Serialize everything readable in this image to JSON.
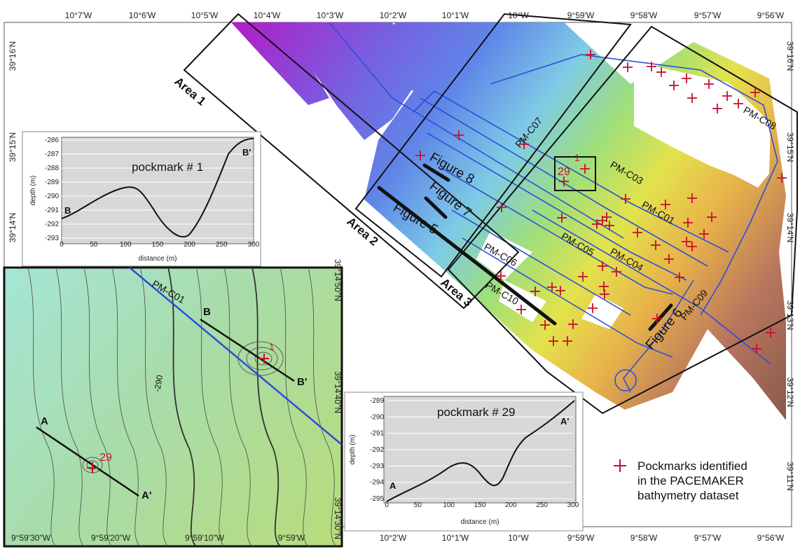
{
  "map": {
    "top_lon_ticks": [
      "10°7'W",
      "10°6'W",
      "10°5'W",
      "10°4'W",
      "10°3'W",
      "10°2'W",
      "10°1'W",
      "10°W",
      "9°59'W",
      "9°58'W",
      "9°57'W",
      "9°56'W"
    ],
    "bottom_lon_ticks": [
      "10°2'W",
      "10°1'W",
      "10°W",
      "9°59'W",
      "9°58'W",
      "9°57'W",
      "9°56'W"
    ],
    "left_lat_ticks": [
      "39°16'N",
      "39°15'N",
      "39°14'N"
    ],
    "right_lat_ticks": [
      "39°16'N",
      "39°15'N",
      "39°14'N",
      "39°13'N",
      "39°12'N",
      "39°11'N"
    ],
    "areas": [
      "Area 1",
      "Area 2",
      "Area 3"
    ],
    "tracks": [
      "PM-C07",
      "PM-C03",
      "PM-C08",
      "PM-C01",
      "PM-C05",
      "PM-C04",
      "PM-C06",
      "PM-C10",
      "PM-C09"
    ],
    "figures": [
      "Figure 8",
      "Figure 7",
      "Figure 5",
      "Figure 6"
    ],
    "pockmark_labels": [
      "1",
      "29"
    ]
  },
  "profile_1": {
    "title": "pockmark # 1",
    "ylabel": "depth (m)",
    "xlabel": "distance (m)",
    "start_label": "B",
    "end_label": "B'",
    "y_ticks": [
      "-286",
      "-287",
      "-288",
      "-289",
      "-290",
      "-291",
      "-292",
      "-293"
    ],
    "x_ticks": [
      "0",
      "50",
      "100",
      "150",
      "200",
      "250",
      "300"
    ]
  },
  "profile_29": {
    "title": "pockmark # 29",
    "ylabel": "depth (m)",
    "xlabel": "distance (m)",
    "start_label": "A",
    "end_label": "A'",
    "y_ticks": [
      "-289",
      "-290",
      "-291",
      "-292",
      "-293",
      "-294",
      "-295"
    ],
    "x_ticks": [
      "0",
      "50",
      "100",
      "150",
      "200",
      "250",
      "300"
    ]
  },
  "inset": {
    "track_label": "PM-C01",
    "contour_label": "-290",
    "point_labels": [
      "A",
      "A'",
      "B",
      "B'"
    ],
    "pockmarks": [
      "1",
      "29"
    ],
    "bottom_ticks": [
      "9°59'30\"W",
      "9°59'20\"W",
      "9°59'10\"W",
      "9°59'W"
    ],
    "right_ticks": [
      "39°14'50\"N",
      "39°14'40\"N",
      "39°14'30\"N"
    ]
  },
  "legend": {
    "line1": "Pockmarks identified",
    "line2": "in the PACEMAKER",
    "line3": "bathymetry dataset",
    "color": "#c8102e"
  }
}
